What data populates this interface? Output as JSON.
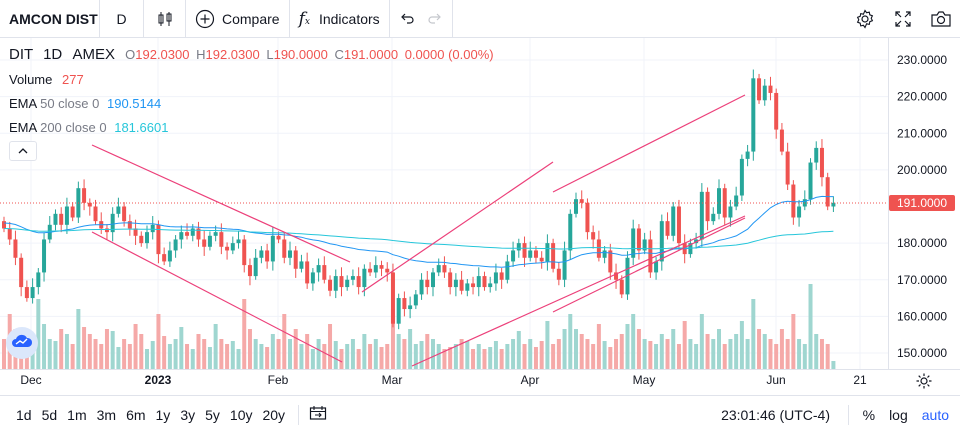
{
  "toolbar": {
    "symbol": "AMCON DIST",
    "interval": "D",
    "compare_label": "Compare",
    "indicators_label": "Indicators"
  },
  "legend": {
    "ticker": "DIT",
    "interval": "1D",
    "exchange": "AMEX",
    "open_label": "O",
    "open": "192.0300",
    "high_label": "H",
    "high": "192.0300",
    "low_label": "L",
    "low": "190.0000",
    "close_label": "C",
    "close": "191.0000",
    "change": "0.0000 (0.00%)",
    "volume_label": "Volume",
    "volume": "277",
    "ema50_label": "EMA",
    "ema50_params": "50 close 0",
    "ema50_value": "190.5144",
    "ema200_label": "EMA",
    "ema200_params": "200 close 0",
    "ema200_value": "181.6601"
  },
  "price_axis": {
    "ticks": [
      "230.0000",
      "220.0000",
      "210.0000",
      "200.0000",
      "180.0000",
      "170.0000",
      "160.0000",
      "150.0000"
    ],
    "last_price": "191.0000"
  },
  "time_axis": {
    "labels": [
      "Dec",
      "2023",
      "Feb",
      "Mar",
      "Apr",
      "May",
      "Jun",
      "21"
    ]
  },
  "bottom": {
    "ranges": [
      "1d",
      "5d",
      "1m",
      "3m",
      "6m",
      "1y",
      "3y",
      "5y",
      "10y",
      "20y"
    ],
    "clock": "23:01:46 (UTC-4)",
    "percent": "%",
    "log": "log",
    "auto": "auto"
  },
  "colors": {
    "up": "#26a69a",
    "down": "#ef5350",
    "ema50": "#2196f3",
    "ema200": "#26c6da",
    "drawing": "#ec407a"
  },
  "chart_data": {
    "type": "candlestick",
    "ylim": [
      145,
      233
    ],
    "closes": [
      184,
      181,
      176,
      168,
      165,
      168,
      172,
      181,
      185,
      188,
      185,
      190,
      187,
      195,
      191,
      190,
      186,
      184,
      183,
      188,
      190,
      186,
      184,
      182,
      180,
      183,
      185,
      177,
      175,
      178,
      181,
      183,
      182,
      184,
      181,
      179,
      182,
      183,
      179,
      178,
      180,
      181,
      174,
      171,
      176,
      178,
      175,
      182,
      181,
      176,
      178,
      173,
      175,
      169,
      172,
      174,
      170,
      167,
      171,
      168,
      170,
      171,
      168,
      173,
      172,
      174,
      173,
      172,
      158,
      165,
      162,
      163,
      166,
      170,
      168,
      172,
      174,
      172,
      168,
      170,
      167,
      169,
      168,
      171,
      168,
      169,
      172,
      170,
      175,
      178,
      180,
      176,
      178,
      176,
      175,
      180,
      173,
      170,
      178,
      188,
      192,
      191,
      183,
      181,
      176,
      178,
      172,
      170,
      166,
      176,
      184,
      178,
      181,
      172,
      175,
      186,
      182,
      190,
      180,
      177,
      180,
      181,
      194,
      186,
      188,
      195,
      187,
      190,
      193,
      203,
      205,
      225,
      219,
      223,
      221,
      211,
      205,
      196,
      187,
      190,
      192,
      202,
      206,
      198,
      190,
      191
    ]
  }
}
